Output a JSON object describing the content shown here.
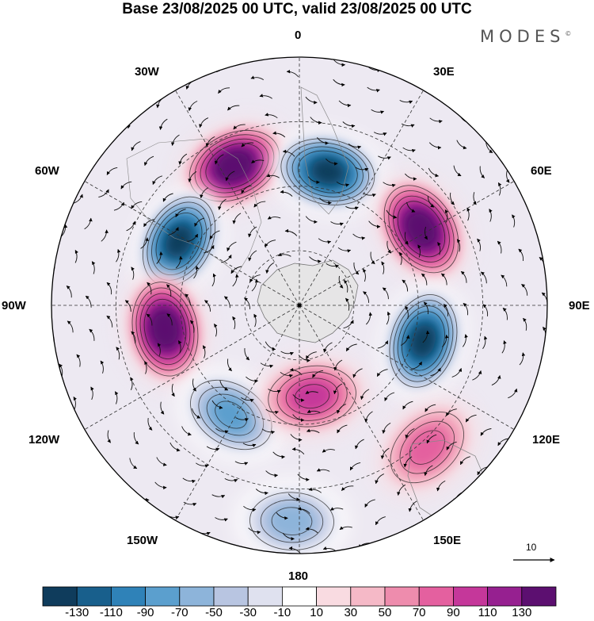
{
  "title": "Base 23/08/2025 00 UTC, valid 23/08/2025 00 UTC",
  "brand": "MODES",
  "brand_mark": "©",
  "longitude_labels": {
    "lon_0": "0",
    "lon_30e": "30E",
    "lon_60e": "60E",
    "lon_90e": "90E",
    "lon_120e": "120E",
    "lon_150e": "150E",
    "lon_180": "180",
    "lon_150w": "150W",
    "lon_120w": "120W",
    "lon_90w": "90W",
    "lon_60w": "60W",
    "lon_30w": "30W"
  },
  "reference_vector": {
    "value": "10"
  },
  "colorbar": {
    "colors": [
      "#0f3c5c",
      "#185f8c",
      "#2f82b8",
      "#5b9fce",
      "#8db4da",
      "#b8c5e1",
      "#dfe1ef",
      "#ffffff",
      "#f9dbe1",
      "#f5b9c7",
      "#ee8cad",
      "#e4609f",
      "#c5379a",
      "#962090",
      "#5c0f70"
    ],
    "labels": [
      "-130",
      "-110",
      "-90",
      "-70",
      "-50",
      "-30",
      "-10",
      "10",
      "30",
      "50",
      "70",
      "90",
      "110",
      "130"
    ]
  },
  "anomaly_centers": [
    {
      "name": "pos-30w",
      "lon": -25,
      "colat_frac": 0.62,
      "level": 130,
      "sign": 1
    },
    {
      "name": "neg-10e",
      "lon": 12,
      "colat_frac": 0.55,
      "level": -130,
      "sign": -1
    },
    {
      "name": "pos-55e",
      "lon": 58,
      "colat_frac": 0.58,
      "level": 130,
      "sign": 1
    },
    {
      "name": "neg-60w",
      "lon": -62,
      "colat_frac": 0.55,
      "level": -130,
      "sign": -1
    },
    {
      "name": "pos-100w",
      "lon": -100,
      "colat_frac": 0.55,
      "level": 130,
      "sign": 1
    },
    {
      "name": "neg-105e",
      "lon": 106,
      "colat_frac": 0.52,
      "level": -130,
      "sign": -1
    },
    {
      "name": "neg-145w",
      "lon": -148,
      "colat_frac": 0.52,
      "level": -70,
      "sign": -1
    },
    {
      "name": "pos-170e",
      "lon": 172,
      "colat_frac": 0.37,
      "level": 70,
      "sign": 1
    },
    {
      "name": "pos-135e",
      "lon": 138,
      "colat_frac": 0.77,
      "level": 50,
      "sign": 1
    },
    {
      "name": "neg-175w",
      "lon": -178,
      "colat_frac": 0.87,
      "level": -50,
      "sign": -1
    }
  ]
}
